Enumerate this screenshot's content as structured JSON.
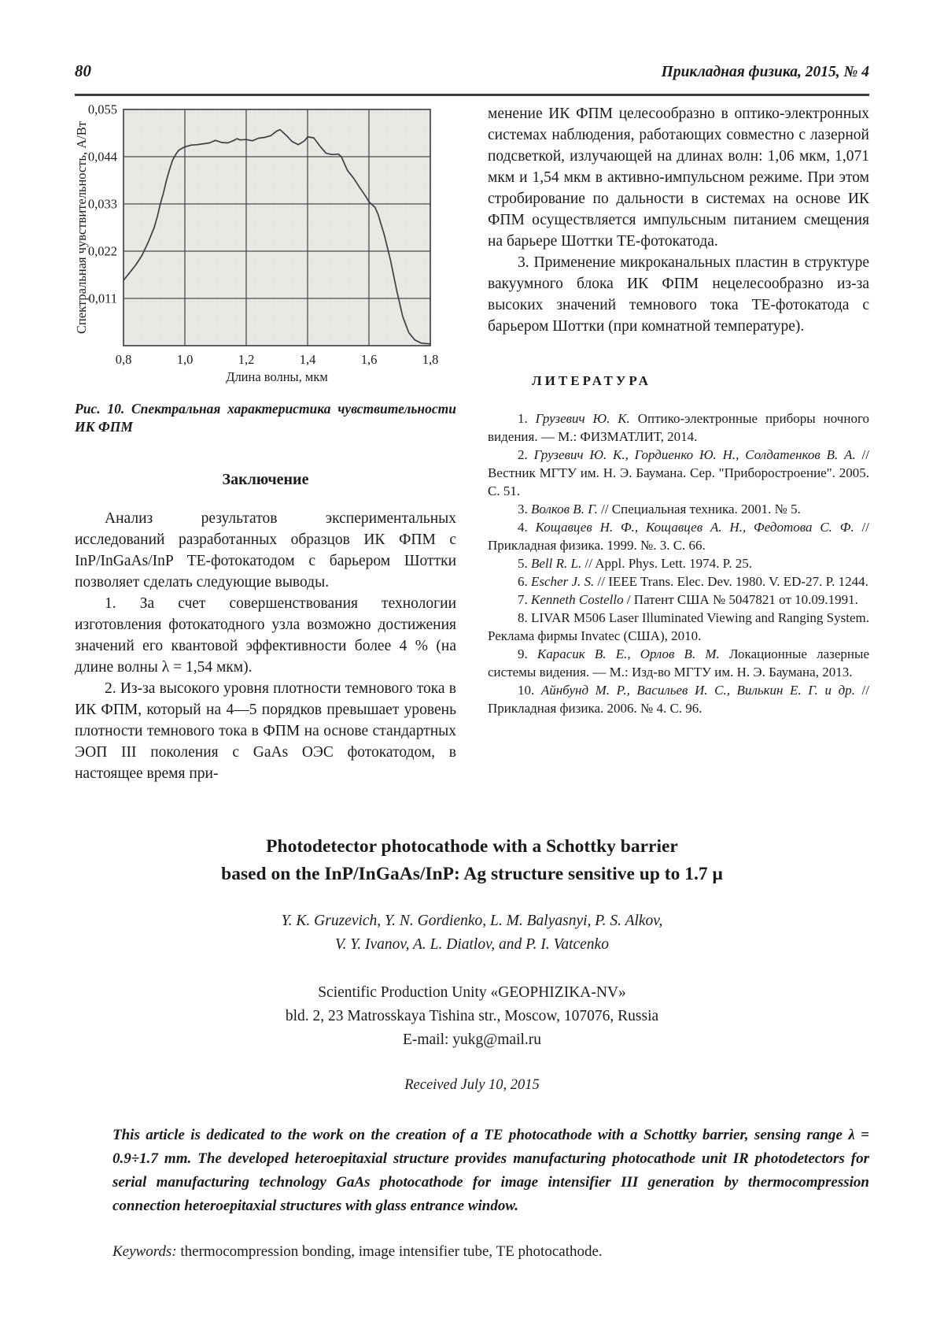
{
  "page": {
    "number": "80",
    "journal": "Прикладная физика, 2015, № 4"
  },
  "chart_data": {
    "type": "line",
    "title": "Рис. 10. Спектральная характеристика чувствительности ИК ФПМ",
    "xlabel": "Длина волны, мкм",
    "ylabel": "Спектральная чувствительность, А/Вт",
    "xlim": [
      0.8,
      1.8
    ],
    "ylim": [
      0,
      0.055
    ],
    "x_tick_vals": [
      0.8,
      1.0,
      1.2,
      1.4,
      1.6,
      1.8
    ],
    "x_ticks": [
      "0,8",
      "1,0",
      "1,2",
      "1,4",
      "1,6",
      "1,8"
    ],
    "y_tick_vals": [
      0.011,
      0.022,
      0.033,
      0.044,
      0.055
    ],
    "y_ticks": [
      "0,011",
      "0,022",
      "0,033",
      "0,044",
      "0,055"
    ],
    "x_grid": [
      1.0,
      1.2,
      1.4,
      1.6
    ],
    "y_grid": [
      0.011,
      0.022,
      0.033,
      0.044
    ],
    "grid": true,
    "legend": "none",
    "series": [
      {
        "name": "spectral-sensitivity",
        "points": [
          [
            0.8,
            0.0152
          ],
          [
            0.82,
            0.017
          ],
          [
            0.84,
            0.0188
          ],
          [
            0.86,
            0.021
          ],
          [
            0.88,
            0.024
          ],
          [
            0.9,
            0.0275
          ],
          [
            0.91,
            0.03
          ],
          [
            0.92,
            0.033
          ],
          [
            0.93,
            0.0355
          ],
          [
            0.94,
            0.0385
          ],
          [
            0.95,
            0.041
          ],
          [
            0.96,
            0.0432
          ],
          [
            0.97,
            0.0445
          ],
          [
            0.98,
            0.0455
          ],
          [
            1.0,
            0.0463
          ],
          [
            1.02,
            0.0467
          ],
          [
            1.04,
            0.0468
          ],
          [
            1.06,
            0.047
          ],
          [
            1.08,
            0.0472
          ],
          [
            1.1,
            0.0478
          ],
          [
            1.12,
            0.0473
          ],
          [
            1.14,
            0.0472
          ],
          [
            1.16,
            0.0478
          ],
          [
            1.17,
            0.0482
          ],
          [
            1.18,
            0.0479
          ],
          [
            1.2,
            0.048
          ],
          [
            1.22,
            0.0477
          ],
          [
            1.24,
            0.0483
          ],
          [
            1.26,
            0.0485
          ],
          [
            1.28,
            0.0489
          ],
          [
            1.3,
            0.05
          ],
          [
            1.31,
            0.0503
          ],
          [
            1.33,
            0.049
          ],
          [
            1.35,
            0.0475
          ],
          [
            1.37,
            0.0468
          ],
          [
            1.39,
            0.0477
          ],
          [
            1.4,
            0.0486
          ],
          [
            1.42,
            0.0484
          ],
          [
            1.44,
            0.0465
          ],
          [
            1.46,
            0.0448
          ],
          [
            1.48,
            0.0445
          ],
          [
            1.5,
            0.0446
          ],
          [
            1.51,
            0.044
          ],
          [
            1.53,
            0.0408
          ],
          [
            1.55,
            0.039
          ],
          [
            1.57,
            0.0368
          ],
          [
            1.59,
            0.0347
          ],
          [
            1.6,
            0.0335
          ],
          [
            1.62,
            0.0322
          ],
          [
            1.63,
            0.0305
          ],
          [
            1.65,
            0.0258
          ],
          [
            1.67,
            0.02
          ],
          [
            1.69,
            0.013
          ],
          [
            1.71,
            0.0068
          ],
          [
            1.73,
            0.003
          ],
          [
            1.75,
            0.0013
          ],
          [
            1.77,
            0.0006
          ],
          [
            1.8,
            0.0004
          ]
        ]
      }
    ]
  },
  "figure_caption": "Рис. 10. Спектральная характеристика чувствительности ИК ФПМ",
  "left_column": {
    "heading": "Заключение",
    "par1": "Анализ результатов экспериментальных исследований разработанных образцов ИК ФПМ с InP/InGaAs/InP ТЕ-фотокатодом с барьером Шоттки позволяет сделать следующие выводы.",
    "par2": "1. За счет совершенствования технологии изготовления фотокатодного узла возможно достижения значений его квантовой эффективности более 4 % (на длине волны λ = 1,54 мкм).",
    "par3": "2. Из-за высокого уровня плотности темнового тока в ИК ФПМ, который на 4—5 порядков превышает уровень плотности темнового тока в ФПМ на основе стандартных ЭОП III поколения с GaAs ОЭС фотокатодом, в настоящее время при-"
  },
  "right_column": {
    "par1": "менение ИК ФПМ целесообразно в оптико-электронных системах наблюдения, работающих совместно с лазерной подсветкой, излучающей на длинах волн: 1,06 мкм, 1,071 мкм и 1,54 мкм в активно-импульсном режиме. При этом стробирование по дальности в системах на основе ИК ФПМ осуществляется импульсным питанием смещения на барьере Шоттки ТЕ-фотокатода.",
    "par2": "3. Применение микроканальных пластин в структуре вакуумного блока ИК ФПМ нецелесообразно из-за высоких значений темнового тока ТЕ-фотокатода с барьером Шоттки (при комнатной температуре).",
    "literature_heading": "ЛИТЕРАТУРА",
    "references": [
      {
        "num": "1.",
        "authors": " Грузевич Ю. К.",
        "rest": " Оптико-электронные приборы ночного видения. — М.: ФИЗМАТЛИТ, 2014."
      },
      {
        "num": "2.",
        "authors": " Грузевич Ю. К., Гордиенко Ю. Н., Солдатенков В. А.",
        "rest": " // Вестник МГТУ им. Н. Э. Баумана. Сер. \"Приборостроение\". 2005. С. 51."
      },
      {
        "num": "3.",
        "authors": " Волков В. Г.",
        "rest": " // Специальная техника. 2001. № 5."
      },
      {
        "num": "4.",
        "authors": " Кощавцев Н. Ф., Кощавцев А. Н., Федотова С. Ф.",
        "rest": " // Прикладная физика. 1999. №. 3. С. 66."
      },
      {
        "num": "5.",
        "authors": " Bell R. L.",
        "rest": " // Appl. Phys. Lett. 1974. P. 25."
      },
      {
        "num": "6.",
        "authors": " Escher J. S.",
        "rest": " // IEEE Trans. Elec. Dev. 1980. V. ED-27. P. 1244."
      },
      {
        "num": "7.",
        "authors": " Kenneth Costello",
        "rest": " / Патент США № 5047821 от 10.09.1991."
      },
      {
        "num": "8.",
        "authors": "",
        "rest": " LIVAR M506 Laser Illuminated Viewing and Ranging System. Реклама фирмы Invatec (США), 2010."
      },
      {
        "num": "9.",
        "authors": " Карасик В. Е., Орлов В. М.",
        "rest": " Локационные лазерные системы видения. — М.: Изд-во МГТУ им. Н. Э. Баумана, 2013."
      },
      {
        "num": "10.",
        "authors": " Айнбунд М. Р., Васильев И. С., Вилькин Е. Г. и др.",
        "rest": " // Прикладная физика. 2006. № 4. С. 96."
      }
    ]
  },
  "english_section": {
    "title_line1": "Photodetector photocathode with a Schottky barrier",
    "title_line2": "based on the InP/InGaAs/InP: Ag structure sensitive up to 1.7 μ",
    "authors_line1": "Y. K. Gruzevich, Y. N. Gordienko, L. M. Balyasnyi, P. S. Alkov,",
    "authors_line2": "V. Y. Ivanov, A. L. Diatlov, and  P. I. Vatcenko",
    "affiliation_line1": "Scientific Production Unity «GEOPHIZIKA-NV»",
    "affiliation_line2": "bld. 2, 23 Matrosskaya Tishina str., Moscow, 107076,  Russia",
    "affiliation_line3": "E-mail: yukg@mail.ru",
    "received": "Received July 10, 2015",
    "abstract": "This article is dedicated to the work on the creation of a TE photocathode with a Schottky barrier, sensing range λ = 0.9÷1.7 mm. The developed heteroepitaxial structure provides manufacturing photocathode unit IR photodetectors for serial manufacturing technology GaAs photocathode for image intensifier III generation by thermocompression connection heteroepitaxial structures with glass entrance window.",
    "keywords_label": "Keywords:",
    "keywords_text": " thermocompression bonding, image intensifier tube, TE photocathode."
  }
}
